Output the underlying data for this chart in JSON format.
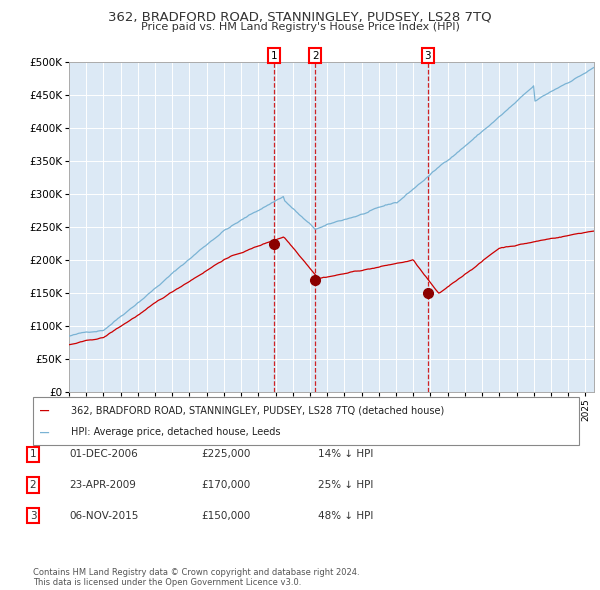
{
  "title": "362, BRADFORD ROAD, STANNINGLEY, PUDSEY, LS28 7TQ",
  "subtitle": "Price paid vs. HM Land Registry's House Price Index (HPI)",
  "background_color": "#dce9f5",
  "plot_bg_color": "#dce9f5",
  "hpi_color": "#7ab3d4",
  "price_color": "#cc0000",
  "marker_color": "#8b0000",
  "vline_color": "#cc0000",
  "ylim": [
    0,
    500000
  ],
  "yticks": [
    0,
    50000,
    100000,
    150000,
    200000,
    250000,
    300000,
    350000,
    400000,
    450000,
    500000
  ],
  "sales": [
    {
      "date": "2006-12-01",
      "price": 225000,
      "label": "1",
      "x_year": 2006.917
    },
    {
      "date": "2009-04-23",
      "price": 170000,
      "label": "2",
      "x_year": 2009.31
    },
    {
      "date": "2015-11-06",
      "price": 150000,
      "label": "3",
      "x_year": 2015.846
    }
  ],
  "legend_house_label": "362, BRADFORD ROAD, STANNINGLEY, PUDSEY, LS28 7TQ (detached house)",
  "legend_hpi_label": "HPI: Average price, detached house, Leeds",
  "table_rows": [
    {
      "num": "1",
      "date": "01-DEC-2006",
      "price": "£225,000",
      "pct": "14% ↓ HPI"
    },
    {
      "num": "2",
      "date": "23-APR-2009",
      "price": "£170,000",
      "pct": "25% ↓ HPI"
    },
    {
      "num": "3",
      "date": "06-NOV-2015",
      "price": "£150,000",
      "pct": "48% ↓ HPI"
    }
  ],
  "footnote": "Contains HM Land Registry data © Crown copyright and database right 2024.\nThis data is licensed under the Open Government Licence v3.0.",
  "xmin": 1995,
  "xmax": 2025.5
}
